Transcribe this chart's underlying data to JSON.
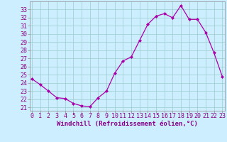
{
  "x": [
    0,
    1,
    2,
    3,
    4,
    5,
    6,
    7,
    8,
    9,
    10,
    11,
    12,
    13,
    14,
    15,
    16,
    17,
    18,
    19,
    20,
    21,
    22,
    23
  ],
  "y": [
    24.5,
    23.8,
    23.0,
    22.2,
    22.1,
    21.5,
    21.2,
    21.1,
    22.2,
    23.0,
    25.2,
    26.7,
    27.2,
    29.2,
    31.2,
    32.2,
    32.5,
    32.0,
    33.5,
    31.8,
    31.8,
    30.2,
    27.7,
    24.8
  ],
  "line_color": "#aa00aa",
  "marker": "D",
  "marker_size": 2.0,
  "bg_color": "#cceeff",
  "grid_color": "#99cccc",
  "xlabel": "Windchill (Refroidissement éolien,°C)",
  "xlabel_fontsize": 6.5,
  "tick_fontsize": 6.0,
  "yticks": [
    21,
    22,
    23,
    24,
    25,
    26,
    27,
    28,
    29,
    30,
    31,
    32,
    33
  ],
  "xtick_labels": [
    "0",
    "1",
    "2",
    "3",
    "4",
    "5",
    "6",
    "7",
    "8",
    "9",
    "10",
    "11",
    "12",
    "13",
    "14",
    "15",
    "16",
    "17",
    "18",
    "19",
    "20",
    "21",
    "22",
    "23"
  ],
  "ylim_min": 20.6,
  "ylim_max": 34.0,
  "xlim_min": -0.3,
  "xlim_max": 23.3,
  "text_color": "#880088",
  "spine_color": "#888888"
}
